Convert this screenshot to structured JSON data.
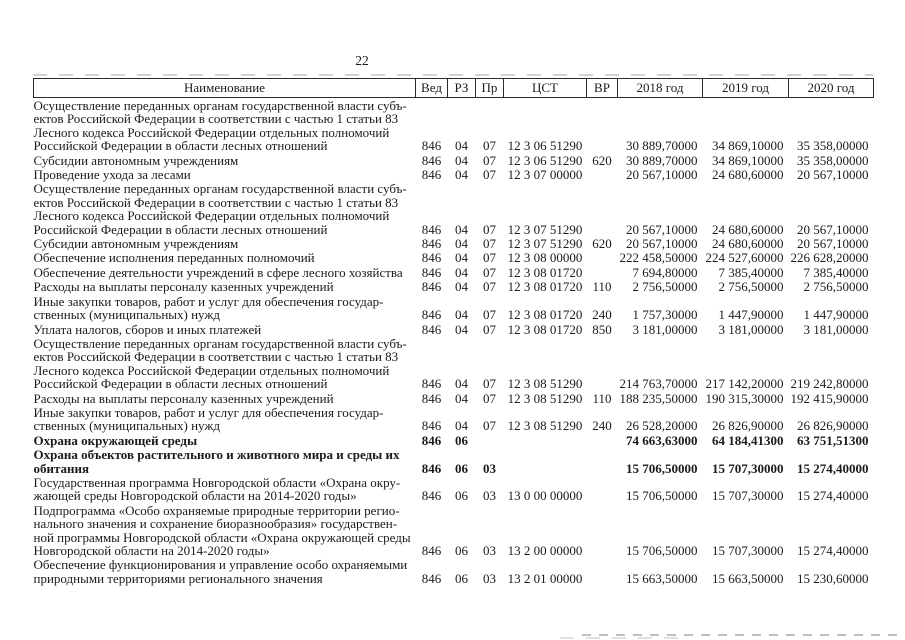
{
  "page": {
    "number": "22"
  },
  "table": {
    "columns": [
      {
        "key": "name",
        "label": "Наименование"
      },
      {
        "key": "ved",
        "label": "Вед"
      },
      {
        "key": "rz",
        "label": "РЗ"
      },
      {
        "key": "pr",
        "label": "Пр"
      },
      {
        "key": "cst",
        "label": "ЦСТ"
      },
      {
        "key": "vr",
        "label": "ВР"
      },
      {
        "key": "y2018",
        "label": "2018 год"
      },
      {
        "key": "y2019",
        "label": "2019 год"
      },
      {
        "key": "y2020",
        "label": "2020 год"
      }
    ],
    "rows": [
      {
        "name": "Осуществление переданных органам государственной власти субъ-\nектов Российской Федерации в соответствии с частью 1 статьи 83\nЛесного кодекса Российской Федерации отдельных полномочий\nРоссийской Федерации в области лесных отношений",
        "ved": "846",
        "rz": "04",
        "pr": "07",
        "cst": "12 3 06 51290",
        "vr": "",
        "y2018": "30 889,70000",
        "y2019": "34 869,10000",
        "y2020": "35 358,00000",
        "bold": false
      },
      {
        "name": "Субсидии автономным учреждениям",
        "ved": "846",
        "rz": "04",
        "pr": "07",
        "cst": "12 3 06 51290",
        "vr": "620",
        "y2018": "30 889,70000",
        "y2019": "34 869,10000",
        "y2020": "35 358,00000",
        "bold": false
      },
      {
        "name": "Проведение ухода за лесами",
        "ved": "846",
        "rz": "04",
        "pr": "07",
        "cst": "12 3 07 00000",
        "vr": "",
        "y2018": "20 567,10000",
        "y2019": "24 680,60000",
        "y2020": "20 567,10000",
        "bold": false
      },
      {
        "name": "Осуществление переданных органам государственной власти субъ-\nектов Российской Федерации в соответствии с частью 1 статьи 83\nЛесного кодекса Российской Федерации отдельных полномочий\nРоссийской Федерации в области лесных отношений",
        "ved": "846",
        "rz": "04",
        "pr": "07",
        "cst": "12 3 07 51290",
        "vr": "",
        "y2018": "20 567,10000",
        "y2019": "24 680,60000",
        "y2020": "20 567,10000",
        "bold": false
      },
      {
        "name": "Субсидии автономным учреждениям",
        "ved": "846",
        "rz": "04",
        "pr": "07",
        "cst": "12 3 07 51290",
        "vr": "620",
        "y2018": "20 567,10000",
        "y2019": "24 680,60000",
        "y2020": "20 567,10000",
        "bold": false
      },
      {
        "name": "Обеспечение исполнения переданных полномочий",
        "ved": "846",
        "rz": "04",
        "pr": "07",
        "cst": "12 3 08 00000",
        "vr": "",
        "y2018": "222 458,50000",
        "y2019": "224 527,60000",
        "y2020": "226 628,20000",
        "bold": false
      },
      {
        "name": "Обеспечение деятельности учреждений в сфере лесного хозяйства",
        "ved": "846",
        "rz": "04",
        "pr": "07",
        "cst": "12 3 08 01720",
        "vr": "",
        "y2018": "7 694,80000",
        "y2019": "7 385,40000",
        "y2020": "7 385,40000",
        "bold": false
      },
      {
        "name": "Расходы на выплаты персоналу казенных учреждений",
        "ved": "846",
        "rz": "04",
        "pr": "07",
        "cst": "12 3 08 01720",
        "vr": "110",
        "y2018": "2 756,50000",
        "y2019": "2 756,50000",
        "y2020": "2 756,50000",
        "bold": false
      },
      {
        "name": "Иные закупки товаров, работ и услуг для обеспечения государ-\nственных (муниципальных) нужд",
        "ved": "846",
        "rz": "04",
        "pr": "07",
        "cst": "12 3 08 01720",
        "vr": "240",
        "y2018": "1 757,30000",
        "y2019": "1 447,90000",
        "y2020": "1 447,90000",
        "bold": false
      },
      {
        "name": "Уплата налогов, сборов и иных платежей",
        "ved": "846",
        "rz": "04",
        "pr": "07",
        "cst": "12 3 08 01720",
        "vr": "850",
        "y2018": "3 181,00000",
        "y2019": "3 181,00000",
        "y2020": "3 181,00000",
        "bold": false
      },
      {
        "name": "Осуществление переданных органам государственной власти субъ-\nектов Российской Федерации в соответствии с частью 1 статьи 83\nЛесного кодекса Российской Федерации отдельных полномочий\nРоссийской Федерации в области лесных отношений",
        "ved": "846",
        "rz": "04",
        "pr": "07",
        "cst": "12 3 08 51290",
        "vr": "",
        "y2018": "214 763,70000",
        "y2019": "217 142,20000",
        "y2020": "219 242,80000",
        "bold": false
      },
      {
        "name": "Расходы на выплаты персоналу казенных учреждений",
        "ved": "846",
        "rz": "04",
        "pr": "07",
        "cst": "12 3 08 51290",
        "vr": "110",
        "y2018": "188 235,50000",
        "y2019": "190 315,30000",
        "y2020": "192 415,90000",
        "bold": false
      },
      {
        "name": "Иные закупки товаров, работ и услуг для обеспечения государ-\nственных (муниципальных) нужд",
        "ved": "846",
        "rz": "04",
        "pr": "07",
        "cst": "12 3 08 51290",
        "vr": "240",
        "y2018": "26 528,20000",
        "y2019": "26 826,90000",
        "y2020": "26 826,90000",
        "bold": false
      },
      {
        "name": "Охрана окружающей среды",
        "ved": "846",
        "rz": "06",
        "pr": "",
        "cst": "",
        "vr": "",
        "y2018": "74 663,63000",
        "y2019": "64 184,41300",
        "y2020": "63 751,51300",
        "bold": true
      },
      {
        "name": "Охрана объектов растительного и животного мира и среды их\nобитания",
        "ved": "846",
        "rz": "06",
        "pr": "03",
        "cst": "",
        "vr": "",
        "y2018": "15 706,50000",
        "y2019": "15 707,30000",
        "y2020": "15 274,40000",
        "bold": true
      },
      {
        "name": "Государственная программа Новгородской области «Охрана окру-\nжающей среды Новгородской области на 2014-2020 годы»",
        "ved": "846",
        "rz": "06",
        "pr": "03",
        "cst": "13 0 00 00000",
        "vr": "",
        "y2018": "15 706,50000",
        "y2019": "15 707,30000",
        "y2020": "15 274,40000",
        "bold": false
      },
      {
        "name": "Подпрограмма «Особо охраняемые природные территории регио-\nнального значения и сохранение биоразнообразия» государствен-\nной программы Новгородской области «Охрана окружающей среды\nНовгородской области на 2014-2020 годы»",
        "ved": "846",
        "rz": "06",
        "pr": "03",
        "cst": "13 2 00 00000",
        "vr": "",
        "y2018": "15 706,50000",
        "y2019": "15 707,30000",
        "y2020": "15 274,40000",
        "bold": false
      },
      {
        "name": "Обеспечение функционирования и управление особо охраняемыми\nприродными территориями регионального значения",
        "ved": "846",
        "rz": "06",
        "pr": "03",
        "cst": "13 2 01 00000",
        "vr": "",
        "y2018": "15 663,50000",
        "y2019": "15 663,50000",
        "y2020": "15 230,60000",
        "bold": false
      }
    ]
  }
}
